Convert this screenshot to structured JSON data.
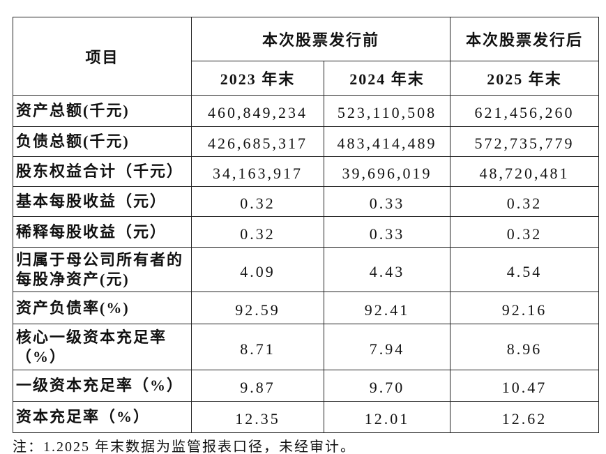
{
  "header": {
    "item": "项目",
    "groups": [
      "本次股票发行前",
      "本次股票发行后"
    ],
    "years": [
      "2023 年末",
      "2024 年末",
      "2025 年末"
    ]
  },
  "table": {
    "rows": [
      {
        "label": "资产总额(千元)",
        "values": [
          "460,849,234",
          "523,110,508",
          "621,456,260"
        ]
      },
      {
        "label": "负债总额(千元)",
        "values": [
          "426,685,317",
          "483,414,489",
          "572,735,779"
        ]
      },
      {
        "label": "股东权益合计（千元）",
        "values": [
          "34,163,917",
          "39,696,019",
          "48,720,481"
        ]
      },
      {
        "label": "基本每股收益（元）",
        "values": [
          "0.32",
          "0.33",
          "0.32"
        ]
      },
      {
        "label": "稀释每股收益（元）",
        "values": [
          "0.32",
          "0.33",
          "0.32"
        ]
      },
      {
        "label": "归属于母公司所有者的每股净资产(元)",
        "values": [
          "4.09",
          "4.43",
          "4.54"
        ]
      },
      {
        "label": "资产负债率(%)",
        "values": [
          "92.59",
          "92.41",
          "92.16"
        ]
      },
      {
        "label": "核心一级资本充足率（%）",
        "values": [
          "8.71",
          "7.94",
          "8.96"
        ]
      },
      {
        "label": "一级资本充足率（%）",
        "values": [
          "9.87",
          "9.70",
          "10.47"
        ]
      },
      {
        "label": "资本充足率（%）",
        "values": [
          "12.35",
          "12.01",
          "12.62"
        ]
      }
    ]
  },
  "note": "注：1.2025 年末数据为监管报表口径，未经审计。"
}
